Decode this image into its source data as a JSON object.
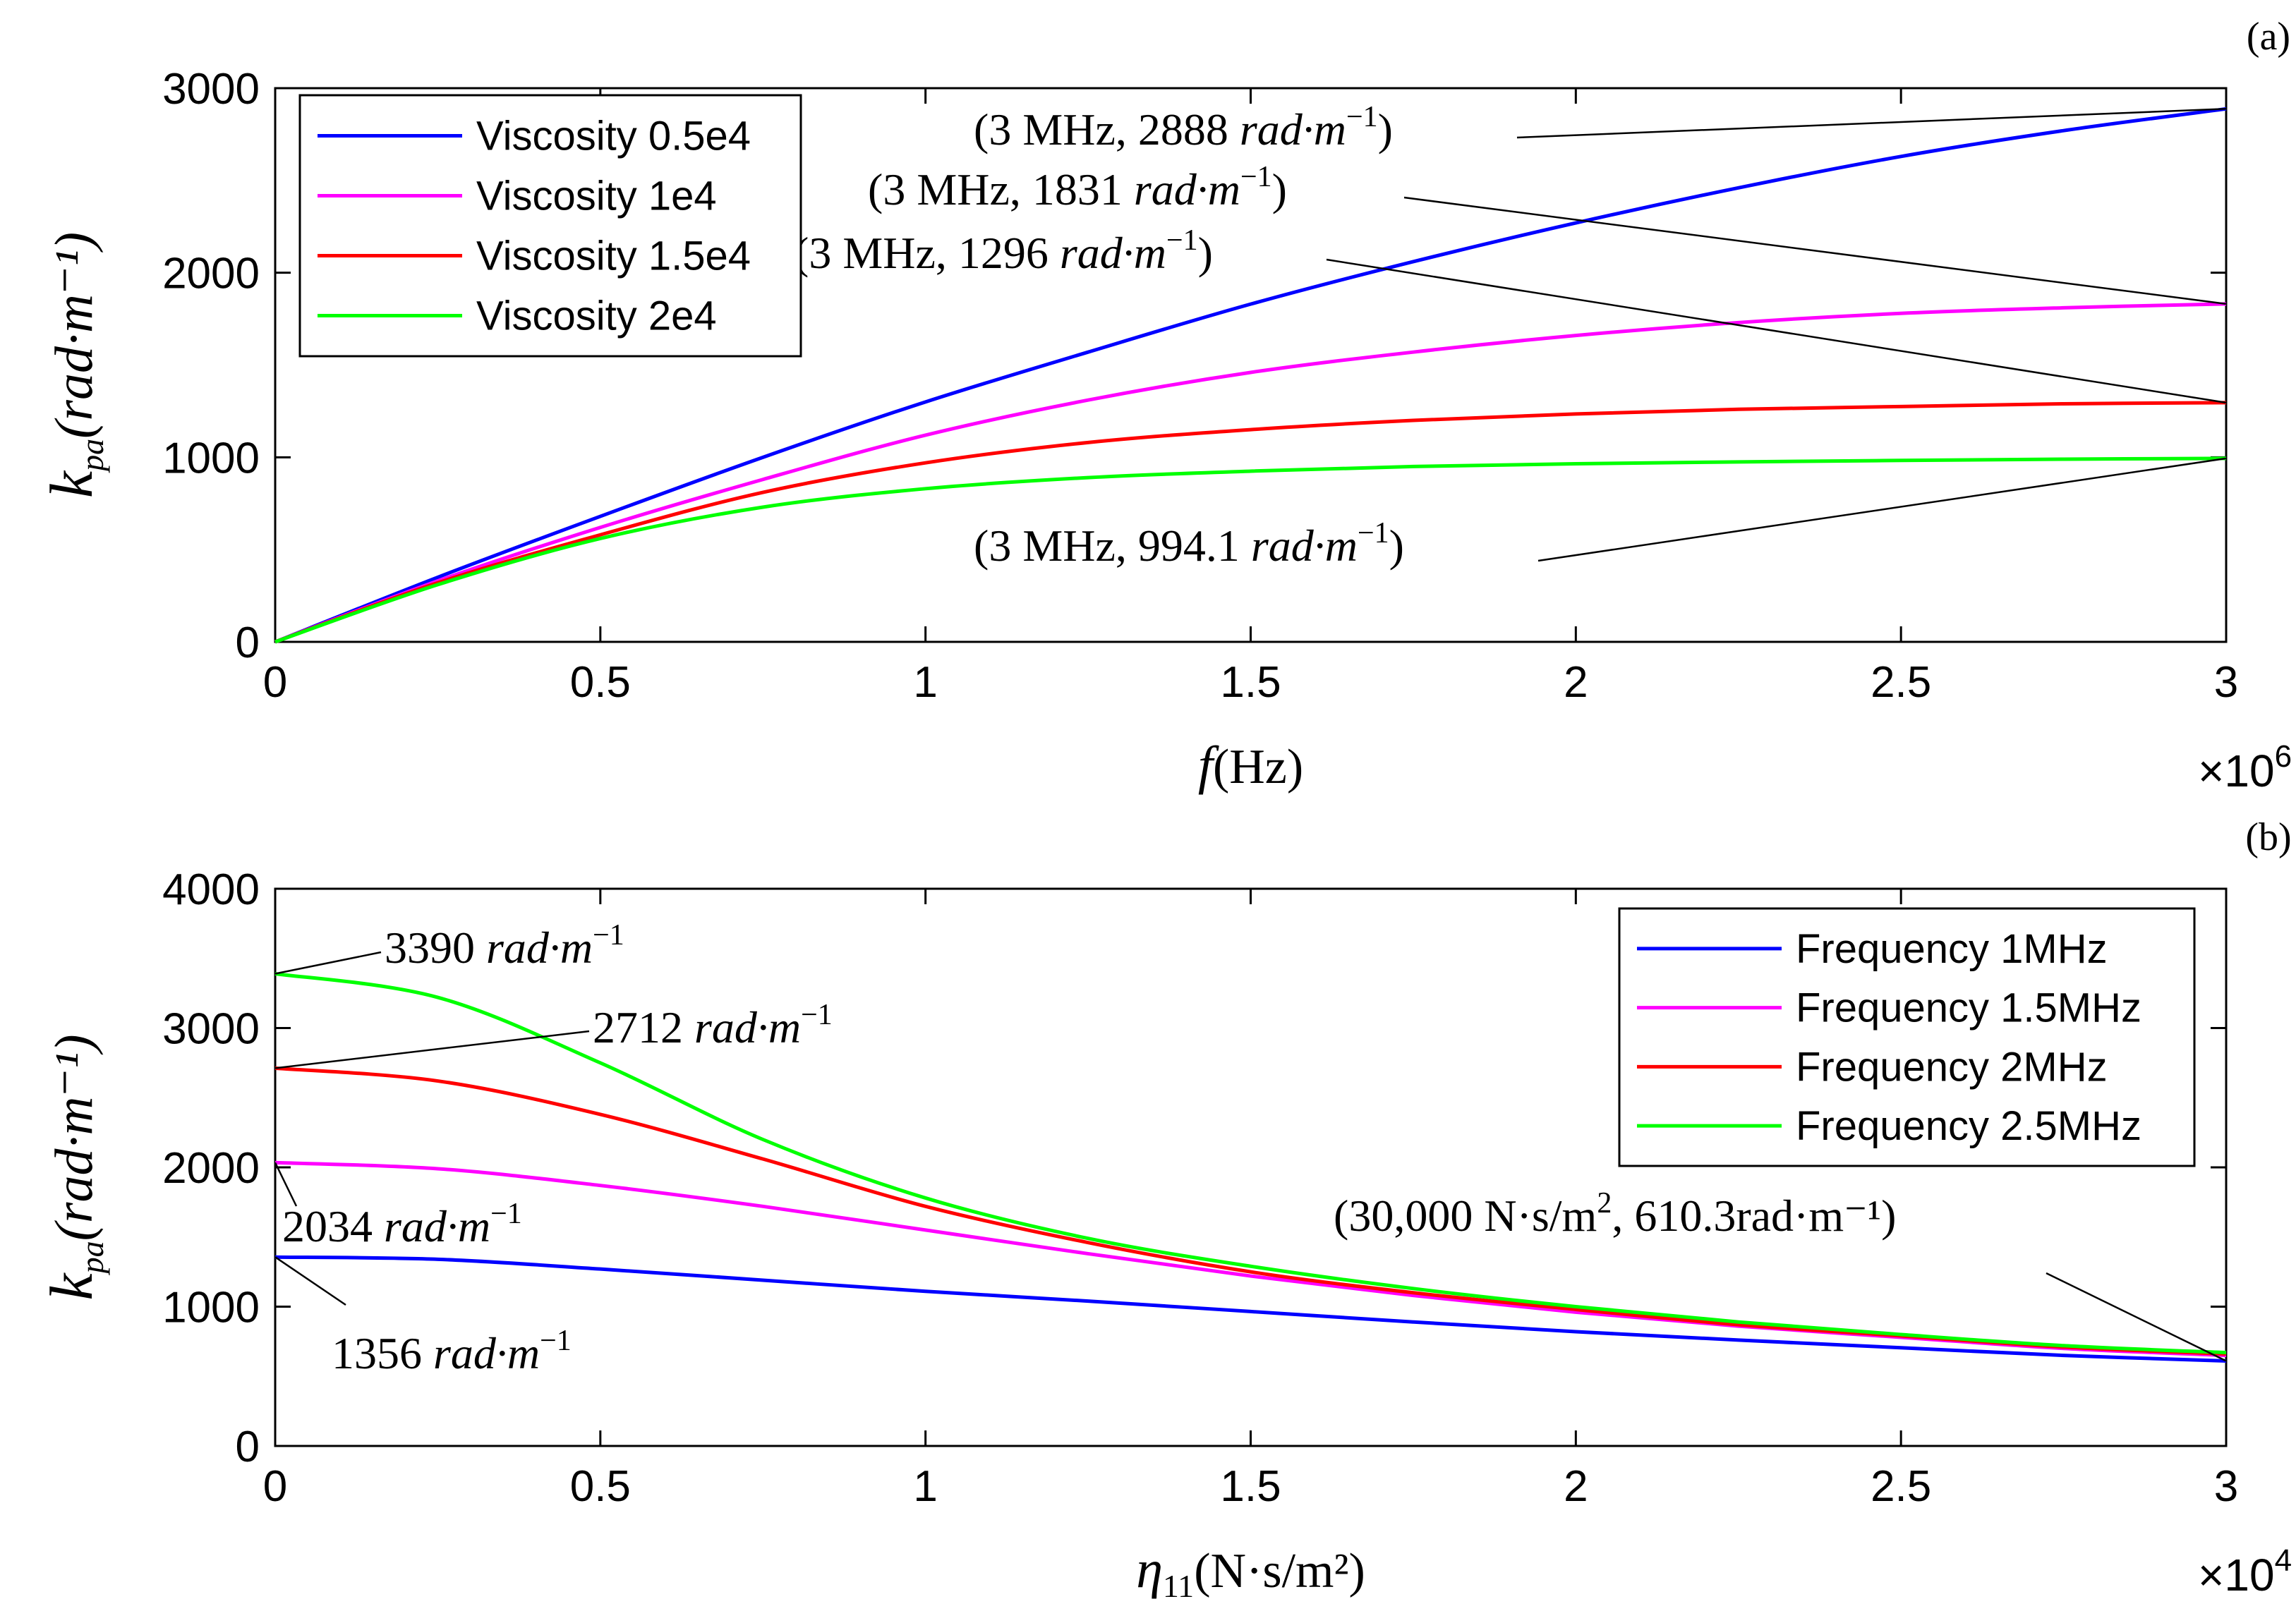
{
  "chart_data": [
    {
      "id": "a",
      "type": "line",
      "panel_label": "(a)",
      "xlabel_main": "f",
      "xlabel_unit": "(Hz)",
      "ylabel_main": "k",
      "ylabel_sub": "pa",
      "ylabel_unit": "(rad·m⁻¹)",
      "xlim": [
        0,
        3
      ],
      "ylim": [
        0,
        3000
      ],
      "x_multiplier_base": "×10",
      "x_multiplier_exp": "6",
      "x_ticks": [
        0,
        0.5,
        1,
        1.5,
        2,
        2.5,
        3
      ],
      "x_tick_labels": [
        "0",
        "0.5",
        "1",
        "1.5",
        "2",
        "2.5",
        "3"
      ],
      "y_ticks": [
        0,
        1000,
        2000,
        3000
      ],
      "y_tick_labels": [
        "0",
        "1000",
        "2000",
        "3000"
      ],
      "legend_position": "top-left",
      "series": [
        {
          "name": "Viscosity 0.5e4",
          "color": "#0000ff",
          "x": [
            0,
            0.25,
            0.5,
            0.75,
            1,
            1.25,
            1.5,
            1.75,
            2,
            2.25,
            2.5,
            2.75,
            3
          ],
          "values": [
            0,
            350,
            680,
            1000,
            1300,
            1570,
            1830,
            2060,
            2270,
            2460,
            2630,
            2770,
            2888
          ]
        },
        {
          "name": "Viscosity 1e4",
          "color": "#ff00ff",
          "x": [
            0,
            0.25,
            0.5,
            0.75,
            1,
            1.25,
            1.5,
            1.75,
            2,
            2.25,
            2.5,
            2.75,
            3
          ],
          "values": [
            0,
            330,
            620,
            880,
            1120,
            1310,
            1460,
            1570,
            1660,
            1730,
            1780,
            1810,
            1831
          ]
        },
        {
          "name": "Viscosity 1.5e4",
          "color": "#ff0000",
          "x": [
            0,
            0.25,
            0.5,
            0.75,
            1,
            1.25,
            1.5,
            1.75,
            2,
            2.25,
            2.5,
            2.75,
            3
          ],
          "values": [
            0,
            320,
            580,
            810,
            970,
            1080,
            1150,
            1200,
            1235,
            1260,
            1275,
            1290,
            1296
          ]
        },
        {
          "name": "Viscosity 2e4",
          "color": "#00ff00",
          "x": [
            0,
            0.25,
            0.5,
            0.75,
            1,
            1.25,
            1.5,
            1.75,
            2,
            2.25,
            2.5,
            2.75,
            3
          ],
          "values": [
            0,
            310,
            560,
            730,
            830,
            890,
            925,
            950,
            965,
            975,
            983,
            990,
            994.1
          ]
        }
      ],
      "annotations": [
        {
          "text": "(3 MHz, 2888 ",
          "units": "rad·m",
          "exp": "−1",
          "close": ")",
          "x": 3,
          "y": 2888
        },
        {
          "text": "(3 MHz, 1831 ",
          "units": "rad·m",
          "exp": "−1",
          "close": ")",
          "x": 3,
          "y": 1831
        },
        {
          "text": "(3 MHz, 1296 ",
          "units": "rad·m",
          "exp": "−1",
          "close": ")",
          "x": 3,
          "y": 1296
        },
        {
          "text": "(3 MHz, 994.1 ",
          "units": "rad·m",
          "exp": "−1",
          "close": ")",
          "x": 3,
          "y": 994.1
        }
      ]
    },
    {
      "id": "b",
      "type": "line",
      "panel_label": "(b)",
      "xlabel_main": "η",
      "xlabel_sub": "11",
      "xlabel_unit": "(N·s/m²)",
      "ylabel_main": "k",
      "ylabel_sub": "pa",
      "ylabel_unit": "(rad·m⁻¹)",
      "xlim": [
        0,
        3
      ],
      "ylim": [
        0,
        4000
      ],
      "x_multiplier_base": "×10",
      "x_multiplier_exp": "4",
      "x_ticks": [
        0,
        0.5,
        1,
        1.5,
        2,
        2.5,
        3
      ],
      "x_tick_labels": [
        "0",
        "0.5",
        "1",
        "1.5",
        "2",
        "2.5",
        "3"
      ],
      "y_ticks": [
        0,
        1000,
        2000,
        3000,
        4000
      ],
      "y_tick_labels": [
        "0",
        "1000",
        "2000",
        "3000",
        "4000"
      ],
      "legend_position": "top-right",
      "series": [
        {
          "name": "Frequency 1MHz",
          "color": "#0000ff",
          "x": [
            0,
            0.25,
            0.5,
            0.75,
            1,
            1.25,
            1.5,
            1.75,
            2,
            2.25,
            2.5,
            2.75,
            3
          ],
          "values": [
            1356,
            1340,
            1270,
            1190,
            1110,
            1040,
            965,
            890,
            820,
            760,
            705,
            650,
            610.3
          ]
        },
        {
          "name": "Frequency 1.5MHz",
          "color": "#ff00ff",
          "x": [
            0,
            0.25,
            0.5,
            0.75,
            1,
            1.25,
            1.5,
            1.75,
            2,
            2.25,
            2.5,
            2.75,
            3
          ],
          "values": [
            2034,
            1990,
            1870,
            1720,
            1550,
            1380,
            1220,
            1080,
            960,
            860,
            780,
            700,
            650
          ]
        },
        {
          "name": "Frequency 2MHz",
          "color": "#ff0000",
          "x": [
            0,
            0.25,
            0.5,
            0.75,
            1,
            1.25,
            1.5,
            1.75,
            2,
            2.25,
            2.5,
            2.75,
            3
          ],
          "values": [
            2712,
            2620,
            2380,
            2060,
            1720,
            1460,
            1250,
            1100,
            980,
            870,
            790,
            710,
            660
          ]
        },
        {
          "name": "Frequency 2.5MHz",
          "color": "#00ff00",
          "x": [
            0,
            0.25,
            0.5,
            0.75,
            1,
            1.25,
            1.5,
            1.75,
            2,
            2.25,
            2.5,
            2.75,
            3
          ],
          "values": [
            3390,
            3220,
            2750,
            2200,
            1780,
            1490,
            1290,
            1130,
            1000,
            890,
            800,
            720,
            670
          ]
        }
      ],
      "annotations": [
        {
          "text": "3390 ",
          "units": "rad·m",
          "exp": "−1",
          "close": "",
          "x": 0,
          "y": 3390
        },
        {
          "text": "2712 ",
          "units": "rad·m",
          "exp": "−1",
          "close": "",
          "x": 0,
          "y": 2712
        },
        {
          "text": "2034 ",
          "units": "rad·m",
          "exp": "−1",
          "close": "",
          "x": 0,
          "y": 2034
        },
        {
          "text": "1356 ",
          "units": "rad·m",
          "exp": "−1",
          "close": "",
          "x": 0,
          "y": 1356
        },
        {
          "text": "(30,000 N·s/m",
          "units": "",
          "exp": "2",
          "close": ", 610.3rad·m⁻¹)",
          "x": 3,
          "y": 610.3
        }
      ]
    }
  ]
}
